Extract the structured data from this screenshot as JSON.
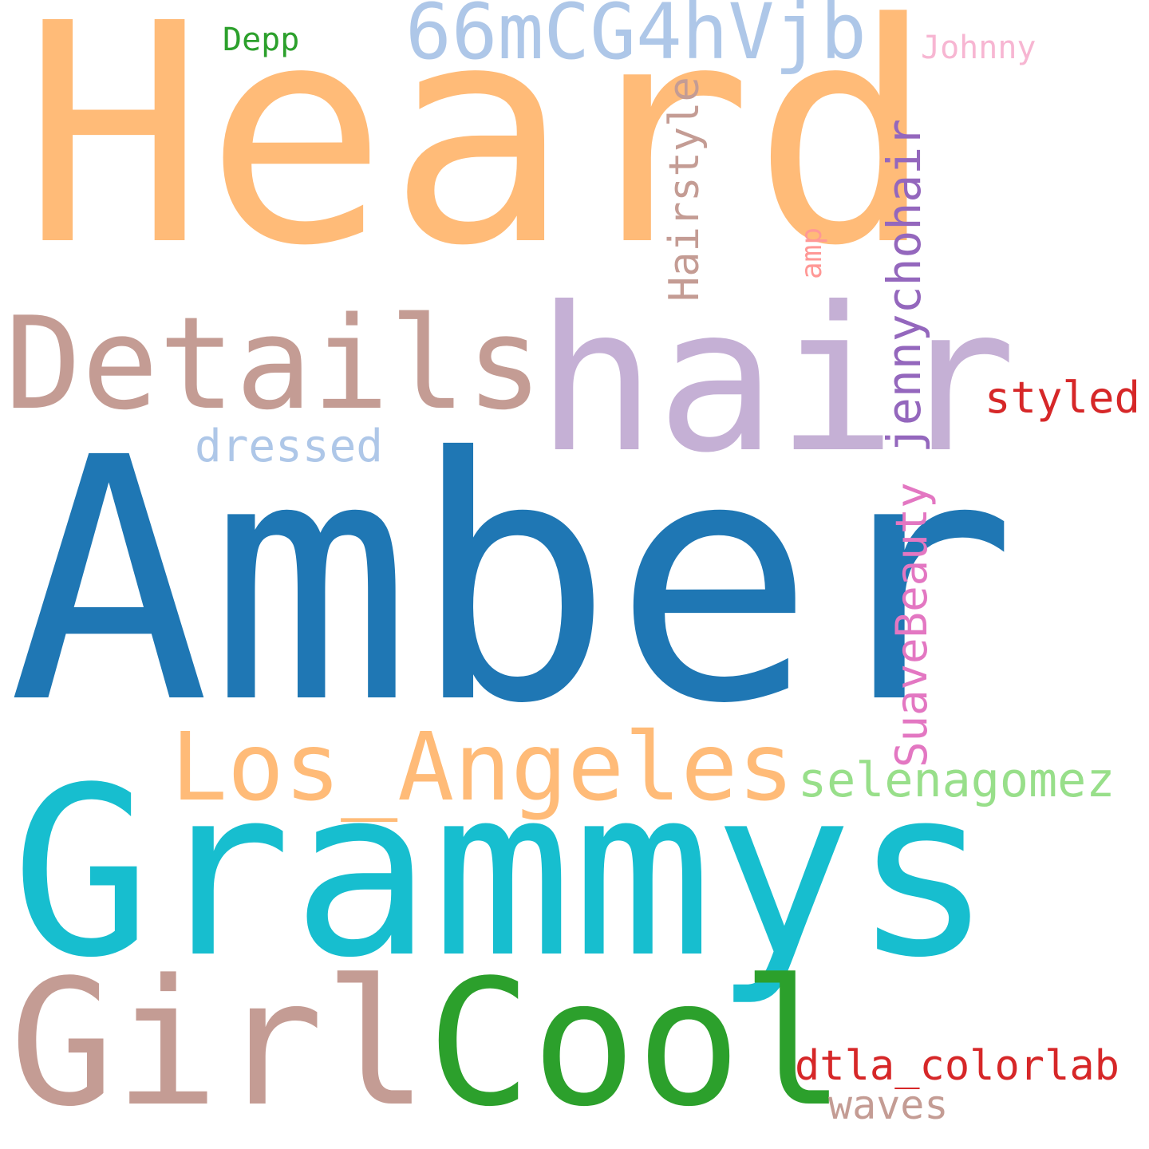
{
  "words": [
    {
      "id": "heard",
      "text": "Heard",
      "color": "#ffbb78"
    },
    {
      "id": "amber",
      "text": "Amber",
      "color": "#1f77b4"
    },
    {
      "id": "grammys",
      "text": "Grammys",
      "color": "#17becf"
    },
    {
      "id": "hair",
      "text": "hair",
      "color": "#c5b0d5"
    },
    {
      "id": "details",
      "text": "Details",
      "color": "#c49c94"
    },
    {
      "id": "girl",
      "text": "Girl",
      "color": "#c49c94"
    },
    {
      "id": "cool",
      "text": "Cool",
      "color": "#2ca02c"
    },
    {
      "id": "code",
      "text": "66mCG4hVjb",
      "color": "#aec7e8"
    },
    {
      "id": "los-angeles",
      "text": "Los_Angeles",
      "color": "#ffbb78"
    },
    {
      "id": "hairstyle",
      "text": "Hairstyle",
      "color": "#c49c94"
    },
    {
      "id": "jennychohair",
      "text": "jennychohair",
      "color": "#9467bd"
    },
    {
      "id": "suavebeauty",
      "text": "SuaveBeauty",
      "color": "#e377c2"
    },
    {
      "id": "selenagomez",
      "text": "selenagomez",
      "color": "#98df8a"
    },
    {
      "id": "dtla-colorlab",
      "text": "dtla_colorlab",
      "color": "#d62728"
    },
    {
      "id": "styled",
      "text": "styled",
      "color": "#d62728"
    },
    {
      "id": "dressed",
      "text": "dressed",
      "color": "#aec7e8"
    },
    {
      "id": "waves",
      "text": "waves",
      "color": "#c49c94"
    },
    {
      "id": "depp",
      "text": "Depp",
      "color": "#2ca02c"
    },
    {
      "id": "johnny",
      "text": "Johnny",
      "color": "#f7b6d2"
    },
    {
      "id": "amp",
      "text": "amp",
      "color": "#ff9896"
    }
  ]
}
